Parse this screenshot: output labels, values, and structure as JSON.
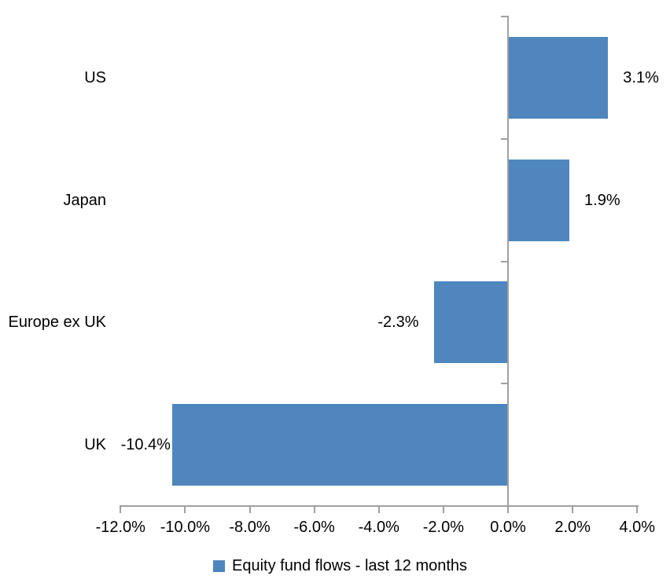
{
  "chart_data": {
    "type": "bar",
    "orientation": "horizontal",
    "title": "",
    "categories": [
      "US",
      "Japan",
      "Europe ex UK",
      "UK"
    ],
    "series": [
      {
        "name": "Equity fund flows - last 12 months",
        "values": [
          3.1,
          1.9,
          -2.3,
          -10.4
        ],
        "data_labels": [
          "3.1%",
          "1.9%",
          "-2.3%",
          "-10.4%"
        ]
      }
    ],
    "x_axis": {
      "tick_labels": [
        "-12.0%",
        "-10.0%",
        "-8.0%",
        "-6.0%",
        "-4.0%",
        "-2.0%",
        "0.0%",
        "2.0%",
        "4.0%"
      ],
      "tick_values": [
        -12,
        -10,
        -8,
        -6,
        -4,
        -2,
        0,
        2,
        4
      ],
      "range": [
        -12,
        4
      ],
      "format": "percent"
    },
    "grid": false,
    "legend": {
      "position": "bottom",
      "entries": [
        "Equity fund flows - last 12 months"
      ]
    },
    "colors": {
      "bar": "#4E86BD",
      "axis": "#A0A0A0",
      "text": "#000000",
      "background": "#FFFFFF"
    }
  }
}
